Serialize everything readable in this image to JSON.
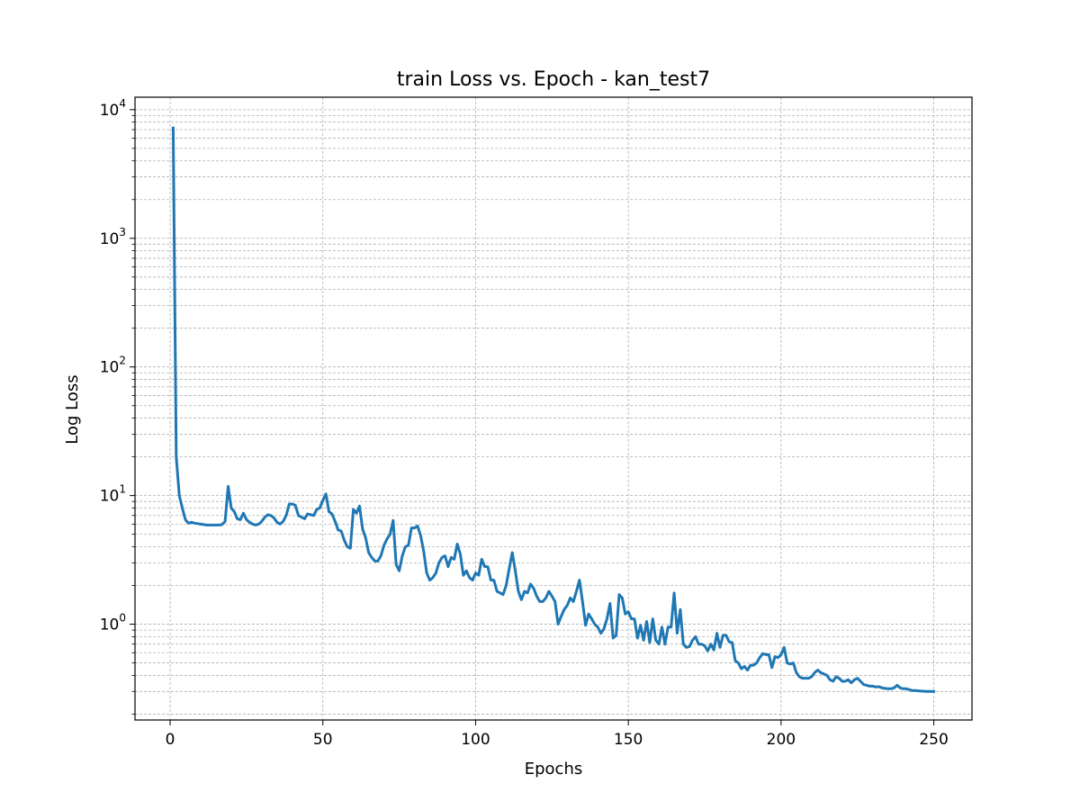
{
  "chart_data": {
    "type": "line",
    "title": "train Loss vs. Epoch - kan_test7",
    "xlabel": "Epochs",
    "ylabel": "Log Loss",
    "xlim": [
      -11.5,
      262.5
    ],
    "ylim": [
      0.18,
      12500
    ],
    "y_scale": "log",
    "grid": true,
    "x_ticks": [
      0,
      50,
      100,
      150,
      200,
      250
    ],
    "y_ticks": [
      {
        "value": 1,
        "base": "10",
        "exp": "0"
      },
      {
        "value": 10,
        "base": "10",
        "exp": "1"
      },
      {
        "value": 100,
        "base": "10",
        "exp": "2"
      },
      {
        "value": 1000,
        "base": "10",
        "exp": "3"
      },
      {
        "value": 10000,
        "base": "10",
        "exp": "4"
      }
    ],
    "series": [
      {
        "color": "#1f77b4",
        "points": [
          [
            1,
            7200
          ],
          [
            2,
            20
          ],
          [
            3,
            10
          ],
          [
            4,
            8
          ],
          [
            5,
            6.5
          ],
          [
            6,
            6.1
          ],
          [
            7,
            6.2
          ],
          [
            8,
            6.1
          ],
          [
            9,
            6.05
          ],
          [
            10,
            6.0
          ],
          [
            12,
            5.9
          ],
          [
            14,
            5.9
          ],
          [
            16,
            5.9
          ],
          [
            17,
            5.95
          ],
          [
            18,
            6.3
          ],
          [
            19,
            11.8
          ],
          [
            20,
            8.0
          ],
          [
            21,
            7.5
          ],
          [
            22,
            6.6
          ],
          [
            23,
            6.5
          ],
          [
            24,
            7.3
          ],
          [
            25,
            6.5
          ],
          [
            26,
            6.2
          ],
          [
            27,
            6.0
          ],
          [
            28,
            5.9
          ],
          [
            29,
            6.0
          ],
          [
            30,
            6.3
          ],
          [
            31,
            6.8
          ],
          [
            32,
            7.1
          ],
          [
            33,
            7.0
          ],
          [
            34,
            6.7
          ],
          [
            35,
            6.2
          ],
          [
            36,
            6.0
          ],
          [
            37,
            6.3
          ],
          [
            38,
            7.0
          ],
          [
            39,
            8.6
          ],
          [
            40,
            8.6
          ],
          [
            41,
            8.4
          ],
          [
            42,
            7.0
          ],
          [
            43,
            6.8
          ],
          [
            44,
            6.6
          ],
          [
            45,
            7.2
          ],
          [
            46,
            7.1
          ],
          [
            47,
            7.0
          ],
          [
            48,
            7.8
          ],
          [
            49,
            8.0
          ],
          [
            50,
            9.2
          ],
          [
            51,
            10.3
          ],
          [
            52,
            7.5
          ],
          [
            53,
            7.2
          ],
          [
            54,
            6.3
          ],
          [
            55,
            5.4
          ],
          [
            56,
            5.3
          ],
          [
            57,
            4.5
          ],
          [
            58,
            4.0
          ],
          [
            59,
            3.9
          ],
          [
            60,
            7.8
          ],
          [
            61,
            7.3
          ],
          [
            62,
            8.3
          ],
          [
            63,
            5.5
          ],
          [
            64,
            4.7
          ],
          [
            65,
            3.6
          ],
          [
            66,
            3.3
          ],
          [
            67,
            3.1
          ],
          [
            68,
            3.1
          ],
          [
            69,
            3.4
          ],
          [
            70,
            4.1
          ],
          [
            71,
            4.6
          ],
          [
            72,
            5.0
          ],
          [
            73,
            6.4
          ],
          [
            74,
            2.9
          ],
          [
            75,
            2.6
          ],
          [
            76,
            3.4
          ],
          [
            77,
            4.0
          ],
          [
            78,
            4.1
          ],
          [
            79,
            5.6
          ],
          [
            80,
            5.6
          ],
          [
            81,
            5.8
          ],
          [
            82,
            4.9
          ],
          [
            83,
            3.7
          ],
          [
            84,
            2.5
          ],
          [
            85,
            2.2
          ],
          [
            86,
            2.3
          ],
          [
            87,
            2.5
          ],
          [
            88,
            3.0
          ],
          [
            89,
            3.3
          ],
          [
            90,
            3.4
          ],
          [
            91,
            2.8
          ],
          [
            92,
            3.3
          ],
          [
            93,
            3.2
          ],
          [
            94,
            4.2
          ],
          [
            95,
            3.5
          ],
          [
            96,
            2.4
          ],
          [
            97,
            2.6
          ],
          [
            98,
            2.3
          ],
          [
            99,
            2.2
          ],
          [
            100,
            2.5
          ],
          [
            101,
            2.4
          ],
          [
            102,
            3.2
          ],
          [
            103,
            2.8
          ],
          [
            104,
            2.8
          ],
          [
            105,
            2.2
          ],
          [
            106,
            2.2
          ],
          [
            107,
            1.8
          ],
          [
            108,
            1.75
          ],
          [
            109,
            1.7
          ],
          [
            110,
            2.0
          ],
          [
            111,
            2.7
          ],
          [
            112,
            3.6
          ],
          [
            113,
            2.6
          ],
          [
            114,
            1.8
          ],
          [
            115,
            1.55
          ],
          [
            116,
            1.8
          ],
          [
            117,
            1.75
          ],
          [
            118,
            2.05
          ],
          [
            119,
            1.9
          ],
          [
            120,
            1.65
          ],
          [
            121,
            1.5
          ],
          [
            122,
            1.5
          ],
          [
            123,
            1.6
          ],
          [
            124,
            1.8
          ],
          [
            125,
            1.65
          ],
          [
            126,
            1.5
          ],
          [
            127,
            1.0
          ],
          [
            128,
            1.15
          ],
          [
            129,
            1.3
          ],
          [
            130,
            1.4
          ],
          [
            131,
            1.6
          ],
          [
            132,
            1.5
          ],
          [
            133,
            1.8
          ],
          [
            134,
            2.2
          ],
          [
            135,
            1.5
          ],
          [
            136,
            0.98
          ],
          [
            137,
            1.2
          ],
          [
            138,
            1.1
          ],
          [
            139,
            1.0
          ],
          [
            140,
            0.95
          ],
          [
            141,
            0.85
          ],
          [
            142,
            0.92
          ],
          [
            143,
            1.1
          ],
          [
            144,
            1.45
          ],
          [
            145,
            0.78
          ],
          [
            146,
            0.82
          ],
          [
            147,
            1.7
          ],
          [
            148,
            1.6
          ],
          [
            149,
            1.2
          ],
          [
            150,
            1.25
          ],
          [
            151,
            1.1
          ],
          [
            152,
            1.1
          ],
          [
            153,
            0.78
          ],
          [
            154,
            0.98
          ],
          [
            155,
            0.75
          ],
          [
            156,
            1.05
          ],
          [
            157,
            0.72
          ],
          [
            158,
            1.1
          ],
          [
            159,
            0.75
          ],
          [
            160,
            0.7
          ],
          [
            161,
            0.95
          ],
          [
            162,
            0.7
          ],
          [
            163,
            0.95
          ],
          [
            164,
            0.95
          ],
          [
            165,
            1.75
          ],
          [
            166,
            0.85
          ],
          [
            167,
            1.3
          ],
          [
            168,
            0.7
          ],
          [
            169,
            0.66
          ],
          [
            170,
            0.67
          ],
          [
            171,
            0.75
          ],
          [
            172,
            0.8
          ],
          [
            173,
            0.7
          ],
          [
            174,
            0.7
          ],
          [
            175,
            0.68
          ],
          [
            176,
            0.62
          ],
          [
            177,
            0.7
          ],
          [
            178,
            0.63
          ],
          [
            179,
            0.85
          ],
          [
            180,
            0.66
          ],
          [
            181,
            0.82
          ],
          [
            182,
            0.82
          ],
          [
            183,
            0.73
          ],
          [
            184,
            0.72
          ],
          [
            185,
            0.52
          ],
          [
            186,
            0.5
          ],
          [
            187,
            0.45
          ],
          [
            188,
            0.47
          ],
          [
            189,
            0.44
          ],
          [
            190,
            0.48
          ],
          [
            191,
            0.48
          ],
          [
            192,
            0.5
          ],
          [
            193,
            0.55
          ],
          [
            194,
            0.59
          ],
          [
            195,
            0.58
          ],
          [
            196,
            0.58
          ],
          [
            197,
            0.46
          ],
          [
            198,
            0.56
          ],
          [
            199,
            0.55
          ],
          [
            200,
            0.58
          ],
          [
            201,
            0.66
          ],
          [
            202,
            0.5
          ],
          [
            203,
            0.49
          ],
          [
            204,
            0.5
          ],
          [
            205,
            0.42
          ],
          [
            206,
            0.39
          ],
          [
            207,
            0.38
          ],
          [
            208,
            0.38
          ],
          [
            209,
            0.38
          ],
          [
            210,
            0.39
          ],
          [
            211,
            0.42
          ],
          [
            212,
            0.44
          ],
          [
            213,
            0.42
          ],
          [
            214,
            0.41
          ],
          [
            215,
            0.4
          ],
          [
            216,
            0.37
          ],
          [
            217,
            0.36
          ],
          [
            218,
            0.39
          ],
          [
            219,
            0.38
          ],
          [
            220,
            0.36
          ],
          [
            221,
            0.36
          ],
          [
            222,
            0.37
          ],
          [
            223,
            0.35
          ],
          [
            224,
            0.37
          ],
          [
            225,
            0.38
          ],
          [
            226,
            0.36
          ],
          [
            227,
            0.34
          ],
          [
            228,
            0.335
          ],
          [
            229,
            0.33
          ],
          [
            230,
            0.33
          ],
          [
            231,
            0.325
          ],
          [
            232,
            0.327
          ],
          [
            233,
            0.32
          ],
          [
            234,
            0.317
          ],
          [
            235,
            0.315
          ],
          [
            236,
            0.315
          ],
          [
            237,
            0.32
          ],
          [
            238,
            0.335
          ],
          [
            239,
            0.32
          ],
          [
            240,
            0.315
          ],
          [
            241,
            0.315
          ],
          [
            242,
            0.31
          ],
          [
            243,
            0.305
          ],
          [
            244,
            0.305
          ],
          [
            245,
            0.303
          ],
          [
            246,
            0.302
          ],
          [
            247,
            0.301
          ],
          [
            248,
            0.3
          ],
          [
            249,
            0.3
          ],
          [
            250,
            0.3
          ]
        ]
      }
    ]
  }
}
